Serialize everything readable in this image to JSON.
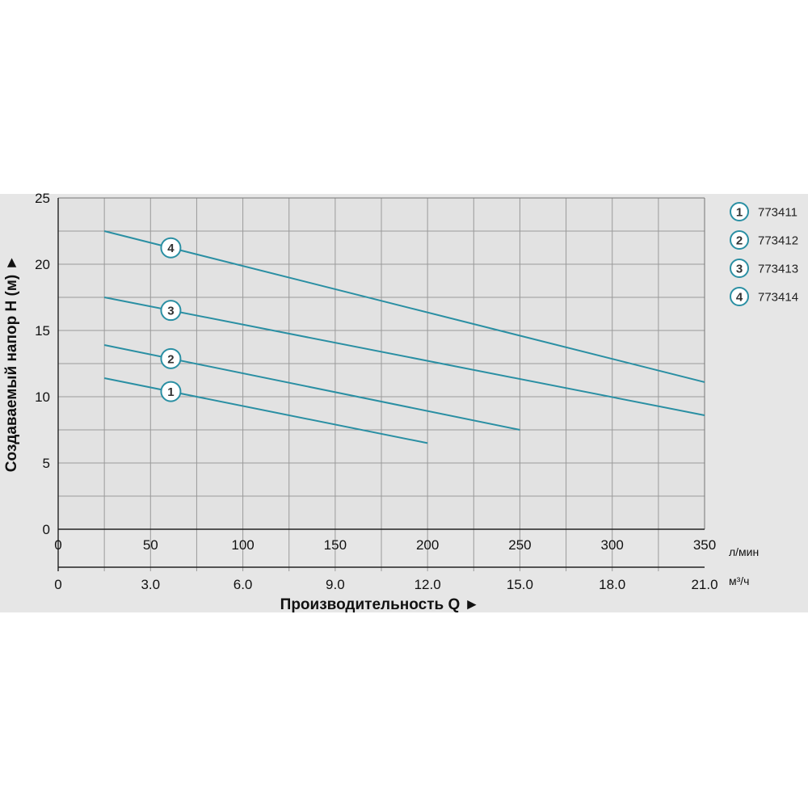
{
  "chart_data": {
    "type": "line",
    "ylabel": "Создаваемый напор H (м) ►",
    "xlabel": "Производительность Q ►",
    "x_unit_primary": "л/мин",
    "x_unit_secondary": "м³/ч",
    "xlim": [
      0,
      350
    ],
    "ylim": [
      0,
      25
    ],
    "x_ticks": [
      0,
      50,
      100,
      150,
      200,
      250,
      300,
      350
    ],
    "y_ticks": [
      0,
      5,
      10,
      15,
      20,
      25
    ],
    "x_tick_labels": [
      "0",
      "50",
      "100",
      "150",
      "200",
      "250",
      "300",
      "350"
    ],
    "y_tick_labels": [
      "0",
      "5",
      "10",
      "15",
      "20",
      "25"
    ],
    "secondary_x_ticks": [
      0,
      50,
      100,
      150,
      200,
      250,
      300,
      350
    ],
    "secondary_x_tick_labels": [
      "0",
      "3.0",
      "6.0",
      "9.0",
      "12.0",
      "15.0",
      "18.0",
      "21.0"
    ],
    "grid": true,
    "legend_position": "right",
    "line_color": "#2a8fa3",
    "series": [
      {
        "name": "773411",
        "marker": "1",
        "x": [
          25,
          200
        ],
        "y": [
          11.4,
          6.5
        ],
        "marker_x": 61
      },
      {
        "name": "773412",
        "marker": "2",
        "x": [
          25,
          250
        ],
        "y": [
          13.9,
          7.5
        ],
        "marker_x": 61
      },
      {
        "name": "773413",
        "marker": "3",
        "x": [
          25,
          350
        ],
        "y": [
          17.5,
          8.6
        ],
        "marker_x": 61
      },
      {
        "name": "773414",
        "marker": "4",
        "x": [
          25,
          350
        ],
        "y": [
          22.5,
          11.1
        ],
        "marker_x": 61
      }
    ]
  }
}
